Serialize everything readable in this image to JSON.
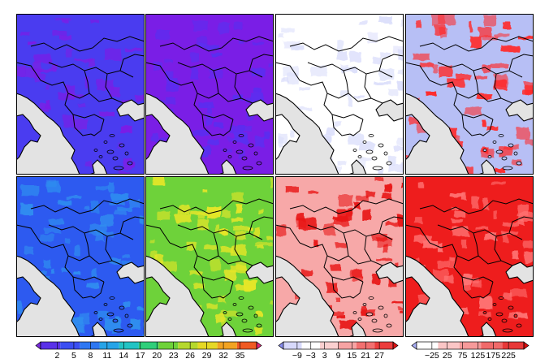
{
  "figure": {
    "rows": 2,
    "columns": 4,
    "region_shown": "Balkan Peninsula",
    "sea_color": "#e3e3e3",
    "border_color": "#000000"
  },
  "panels": [
    {
      "row": 0,
      "col": 0,
      "dominant_color": "#4a3cf0",
      "secondary_color": "#7a1ee6",
      "colorbar": "rainbow"
    },
    {
      "row": 0,
      "col": 1,
      "dominant_color": "#7a1ee6",
      "secondary_color": "#5a2ef0",
      "colorbar": "rainbow"
    },
    {
      "row": 0,
      "col": 2,
      "dominant_color": "#ffffff",
      "secondary_color": "#dde0fb",
      "colorbar": "diverging-a"
    },
    {
      "row": 0,
      "col": 3,
      "dominant_color": "#b7bff5",
      "secondary_color": "#ff2a2a",
      "colorbar": "diverging-b"
    },
    {
      "row": 1,
      "col": 0,
      "dominant_color": "#2d5af0",
      "secondary_color": "#2f8ef0",
      "colorbar": "rainbow"
    },
    {
      "row": 1,
      "col": 1,
      "dominant_color": "#6ed23a",
      "secondary_color": "#e6e628",
      "colorbar": "rainbow"
    },
    {
      "row": 1,
      "col": 2,
      "dominant_color": "#f7a8a8",
      "secondary_color": "#e81414",
      "colorbar": "diverging-a"
    },
    {
      "row": 1,
      "col": 3,
      "dominant_color": "#ee1d1d",
      "secondary_color": "#ff7373",
      "colorbar": "diverging-b"
    }
  ],
  "colorbars": [
    {
      "id": "rainbow",
      "ticks": [
        "2",
        "5",
        "8",
        "11",
        "14",
        "17",
        "20",
        "23",
        "26",
        "29",
        "32",
        "35"
      ],
      "colors": [
        "#7b2be0",
        "#5a31e8",
        "#3c4ff2",
        "#2d77f2",
        "#27a4e8",
        "#22c4c4",
        "#2fcf7a",
        "#6ed23a",
        "#b5d82d",
        "#e6d825",
        "#f2a322",
        "#f05a23",
        "#e6247a"
      ]
    },
    {
      "id": "diverging-a",
      "ticks": [
        "−9",
        "−3",
        "3",
        "9",
        "15",
        "21",
        "27"
      ],
      "colors": [
        "#8a8ef0",
        "#d7d9fb",
        "#ffffff",
        "#fbd0d0",
        "#f7a3a3",
        "#f27070",
        "#ec3d3d",
        "#e01010"
      ]
    },
    {
      "id": "diverging-b",
      "ticks": [
        "−25",
        "25",
        "75",
        "125",
        "175",
        "225"
      ],
      "colors": [
        "#a8adf5",
        "#ffffff",
        "#fbc6c6",
        "#f69a9a",
        "#f06a6a",
        "#e83838",
        "#dd0a0a"
      ]
    }
  ]
}
